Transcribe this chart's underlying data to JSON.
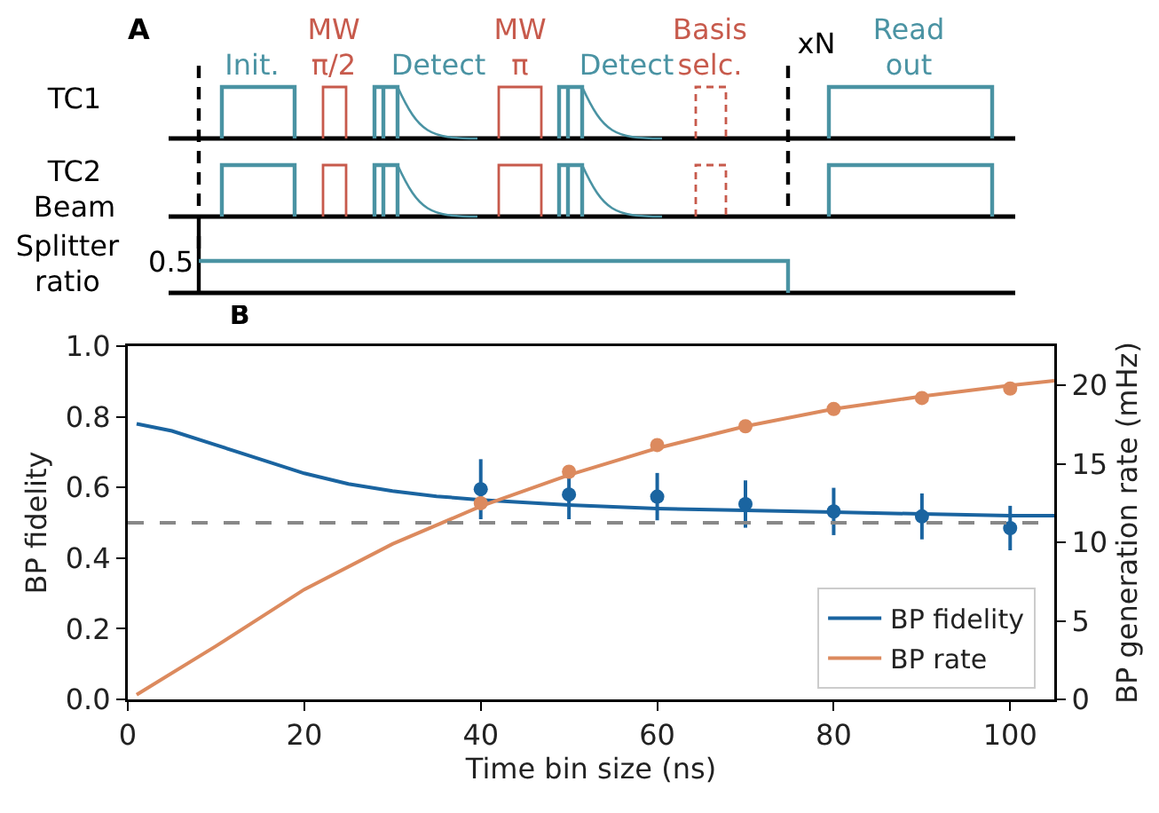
{
  "chart_data": [
    {
      "type": "other",
      "title": "A",
      "annotations": [
        "TC1",
        "TC2\nBeam",
        "Splitter\nratio",
        "0.5",
        "Init.",
        "MW\nπ/2",
        "Detect",
        "MW\nπ",
        "Detect",
        "Basis\nselc.",
        "xN",
        "Read\nout"
      ]
    },
    {
      "type": "scatter",
      "title": "B",
      "xlabel": "Time bin size (ns)",
      "ylabel": "BP fidelity",
      "y2label": "BP generation rate (mHz)",
      "xlim": [
        0,
        105
      ],
      "xticks": [
        0,
        20,
        40,
        60,
        80,
        100
      ],
      "ylim": [
        0,
        1
      ],
      "yticks": [
        {
          "value": 0,
          "label": "0.0"
        },
        0.2,
        0.4,
        0.6,
        0.8,
        {
          "value": 1,
          "label": "1.0"
        }
      ],
      "y2lim": [
        0,
        22.5
      ],
      "y2ticks": [
        0,
        5,
        10,
        15,
        20
      ],
      "grid": false,
      "legend": "bottom right",
      "marker": "circle",
      "ref_lines": [
        {
          "axis": "y",
          "value": 0.5,
          "color": "#888888",
          "line_style": "dashed"
        }
      ],
      "series": [
        {
          "name": "BP fidelity",
          "type": "line",
          "marker": "none",
          "color": "#1a64a0",
          "x": [
            1,
            5,
            10,
            15,
            20,
            25,
            30,
            35,
            40,
            50,
            60,
            70,
            80,
            90,
            100,
            105
          ],
          "values": [
            0.78,
            0.76,
            0.72,
            0.68,
            0.64,
            0.61,
            0.59,
            0.575,
            0.565,
            0.55,
            0.54,
            0.535,
            0.53,
            0.525,
            0.52,
            0.52
          ]
        },
        {
          "name": "BP rate",
          "type": "line",
          "marker": "none",
          "color": "#dc8a5e",
          "axis": "y2",
          "x": [
            1,
            10,
            20,
            30,
            40,
            50,
            60,
            70,
            80,
            90,
            100,
            105
          ],
          "values": [
            0.3,
            3.4,
            7.0,
            9.9,
            12.3,
            14.3,
            16.0,
            17.4,
            18.5,
            19.3,
            20.0,
            20.3
          ]
        },
        {
          "type": "scatter",
          "color": "#1a64a0",
          "x": [
            40,
            50,
            60,
            70,
            80,
            90,
            100
          ],
          "values": [
            0.595,
            0.58,
            0.574,
            0.553,
            0.532,
            0.518,
            0.485
          ],
          "errors": [
            0.085,
            0.07,
            0.067,
            0.067,
            0.067,
            0.065,
            0.063
          ]
        },
        {
          "type": "scatter",
          "color": "#dc8a5e",
          "axis": "y2",
          "x": [
            40,
            50,
            60,
            70,
            80,
            90,
            100
          ],
          "values": [
            12.5,
            14.5,
            16.2,
            17.4,
            18.5,
            19.2,
            19.8
          ]
        }
      ]
    }
  ]
}
